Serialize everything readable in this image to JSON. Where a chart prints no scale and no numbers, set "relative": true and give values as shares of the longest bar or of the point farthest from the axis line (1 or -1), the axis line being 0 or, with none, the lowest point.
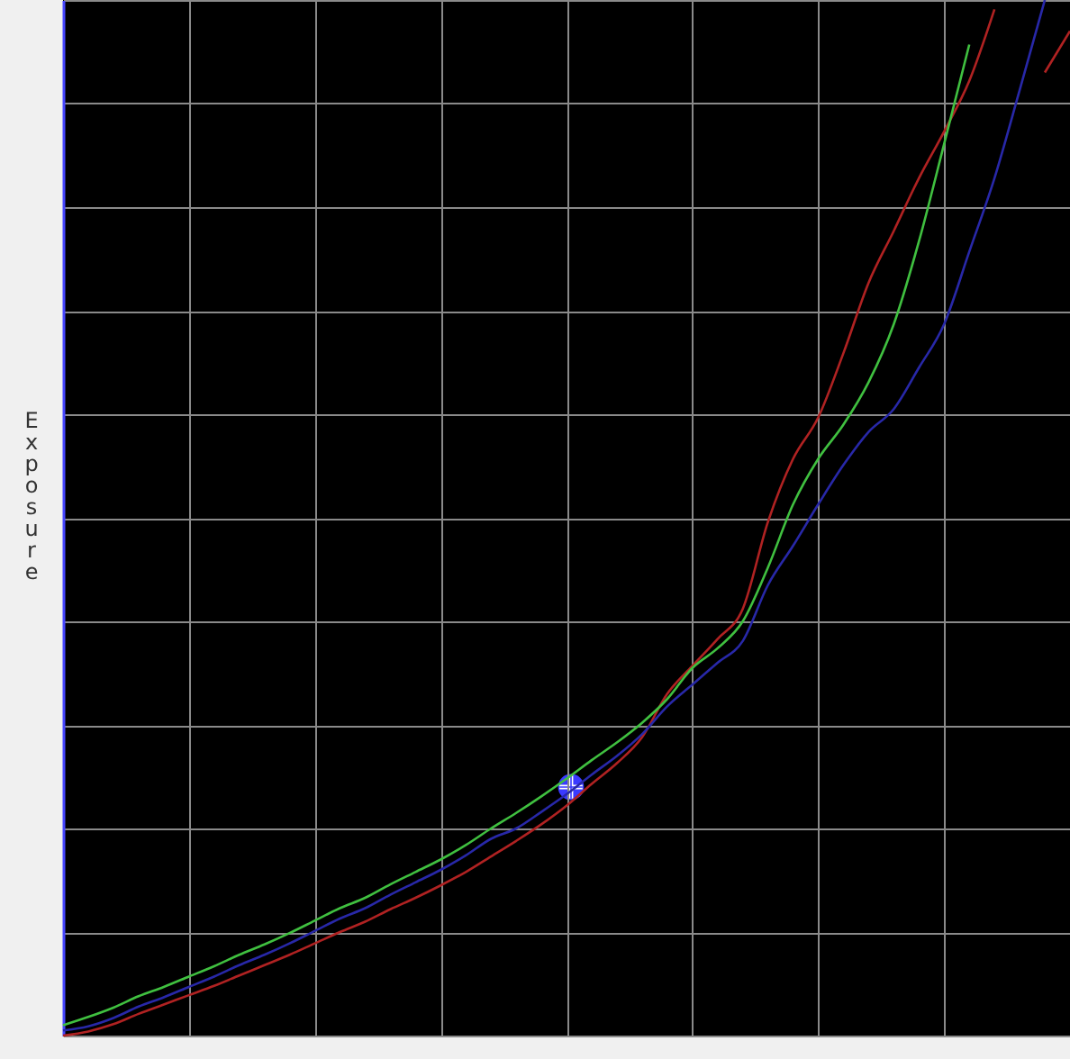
{
  "chart_data": {
    "type": "line",
    "ylabel": "Exposure",
    "relative": true,
    "grid": true,
    "categories": [
      null,
      null,
      null,
      null,
      null,
      null,
      null,
      null,
      null,
      null,
      null,
      null,
      null,
      null,
      null,
      null,
      null,
      null,
      null,
      null,
      null,
      null,
      null,
      null,
      null,
      null,
      null,
      null,
      null,
      null,
      null,
      null,
      null,
      null,
      null,
      null,
      null,
      null,
      null,
      null,
      null
    ],
    "series": [
      {
        "color": "#b02222",
        "values": [
          0,
          0.004,
          0.011,
          0.021,
          0.03,
          0.039,
          0.048,
          0.058,
          0.068,
          0.078,
          0.089,
          0.1,
          0.11,
          0.122,
          0.133,
          0.145,
          0.158,
          0.173,
          0.188,
          0.204,
          0.222,
          0.243,
          0.263,
          0.288,
          0.33,
          0.357,
          0.383,
          0.412,
          0.496,
          0.557,
          0.597,
          0.659,
          0.727,
          0.777,
          0.828,
          0.873,
          0.922,
          0.991,
          null,
          0.93,
          0.97
        ]
      },
      {
        "color": "#40c040",
        "values": [
          0.01,
          0.018,
          0.027,
          0.038,
          0.047,
          0.057,
          0.067,
          0.078,
          0.088,
          0.099,
          0.111,
          0.123,
          0.133,
          0.146,
          0.158,
          0.17,
          0.184,
          0.2,
          0.215,
          0.231,
          0.248,
          0.266,
          0.283,
          0.302,
          0.325,
          0.355,
          0.374,
          0.4,
          0.452,
          0.513,
          0.557,
          0.59,
          0.631,
          0.687,
          0.767,
          0.861,
          0.957,
          null,
          null,
          null,
          null
        ]
      },
      {
        "color": "#2828a8",
        "values": [
          0.005,
          0.009,
          0.017,
          0.028,
          0.037,
          0.047,
          0.057,
          0.068,
          0.078,
          0.089,
          0.101,
          0.113,
          0.123,
          0.136,
          0.148,
          0.16,
          0.174,
          0.19,
          0.2,
          0.216,
          0.233,
          0.252,
          0.27,
          0.291,
          0.318,
          0.339,
          0.36,
          0.381,
          0.435,
          0.473,
          0.513,
          0.551,
          0.583,
          0.605,
          0.645,
          0.687,
          0.757,
          0.828,
          0.913,
          1,
          null
        ]
      }
    ]
  }
}
